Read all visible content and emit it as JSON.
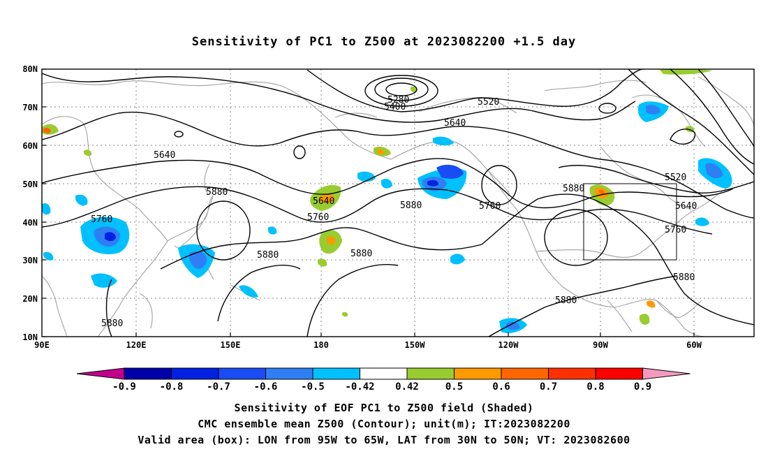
{
  "title": "Sensitivity of PC1 to Z500 at 2023082200 +1.5 day",
  "lat_ticks": [
    "80N",
    "70N",
    "60N",
    "50N",
    "40N",
    "30N",
    "20N",
    "10N"
  ],
  "lon_ticks": [
    "90E",
    "120E",
    "150E",
    "180",
    "150W",
    "120W",
    "90W",
    "60W"
  ],
  "contour_labels": [
    {
      "text": "5280"
    },
    {
      "text": "5400"
    },
    {
      "text": "5520"
    },
    {
      "text": "5640"
    },
    {
      "text": "5640"
    },
    {
      "text": "5880"
    },
    {
      "text": "5640"
    },
    {
      "text": "5760"
    },
    {
      "text": "5880"
    },
    {
      "text": "5760"
    },
    {
      "text": "5880"
    },
    {
      "text": "5520"
    },
    {
      "text": "5640"
    },
    {
      "text": "5760"
    },
    {
      "text": "5760"
    },
    {
      "text": "5880"
    },
    {
      "text": "5880"
    },
    {
      "text": "5880"
    },
    {
      "text": "5880"
    },
    {
      "text": "5880"
    }
  ],
  "colorbar": {
    "labels": [
      "-0.9",
      "-0.8",
      "-0.7",
      "-0.6",
      "-0.5",
      "-0.42",
      "0.42",
      "0.5",
      "0.6",
      "0.7",
      "0.8",
      "0.9"
    ],
    "colors": [
      "#0000a8",
      "#0022e0",
      "#1a4cf4",
      "#2f7ff4",
      "#00c0ff",
      "#ffffff",
      "#98cc30",
      "#ff9900",
      "#ff6600",
      "#ff3000",
      "#ff0000"
    ],
    "under_color": "#c0008c",
    "over_color": "#f49ac0"
  },
  "captions": [
    "Sensitivity of EOF PC1 to Z500 field (Shaded)",
    "CMC ensemble mean Z500 (Contour); unit(m); IT:2023082200",
    "Valid area (box): LON from 95W to 65W, LAT from 30N to 50N; VT: 2023082600"
  ]
}
